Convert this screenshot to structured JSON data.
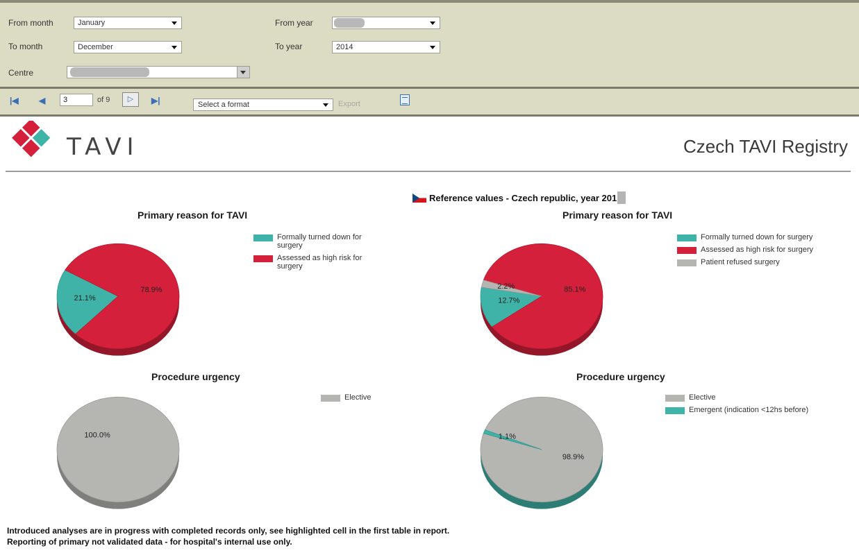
{
  "params": {
    "from_month_label": "From month",
    "from_month_value": "January",
    "to_month_label": "To month",
    "to_month_value": "December",
    "from_year_label": "From year",
    "to_year_label": "To year",
    "to_year_value": "2014",
    "centre_label": "Centre"
  },
  "toolbar": {
    "first_icon": "first-page-icon",
    "prev_icon": "previous-page-icon",
    "page_value": "3",
    "page_total": "of 9",
    "next_icon": "next-page-icon",
    "last_icon": "last-page-icon",
    "format_placeholder": "Select a format",
    "export_label": "Export",
    "refresh_icon": "document-icon"
  },
  "report": {
    "logo_text": "TAVI",
    "registry_title": "Czech TAVI Registry",
    "reference_title": "Reference values - Czech republic, year 201",
    "footer_line1": "Introduced analyses are in progress with completed records only, see highlighted cell in the first table in report.",
    "footer_line2": "Reporting of primary not validated data - for hospital's internal use only."
  },
  "colors": {
    "teal": "#3fb3a7",
    "red": "#d4203a",
    "grey": "#b5b5b2",
    "panel": "#dcdcc4"
  },
  "chart_data": [
    {
      "type": "pie",
      "title": "Primary reason for TAVI",
      "categories": [
        "Formally turned down for surgery",
        "Assessed as high risk for surgery"
      ],
      "values": [
        21.1,
        78.9
      ],
      "labels": [
        "21.1%",
        "78.9%"
      ],
      "colors": [
        "#3fb3a7",
        "#d4203a"
      ],
      "legend": "right"
    },
    {
      "type": "pie",
      "title": "Primary reason for TAVI",
      "categories": [
        "Formally turned down for surgery",
        "Assessed as high risk for surgery",
        "Patient refused surgery"
      ],
      "values": [
        12.7,
        85.1,
        2.2
      ],
      "labels": [
        "12.7%",
        "85.1%",
        "2.2%"
      ],
      "colors": [
        "#3fb3a7",
        "#d4203a",
        "#b5b5b2"
      ],
      "legend": "right"
    },
    {
      "type": "pie",
      "title": "Procedure urgency",
      "categories": [
        "Elective"
      ],
      "values": [
        100.0
      ],
      "labels": [
        "100.0%"
      ],
      "colors": [
        "#b5b5b2"
      ],
      "legend": "right"
    },
    {
      "type": "pie",
      "title": "Procedure urgency",
      "categories": [
        "Elective",
        "Emergent (indication <12hs before)"
      ],
      "values": [
        98.9,
        1.1
      ],
      "labels": [
        "98.9%",
        "1.1%"
      ],
      "colors": [
        "#b5b5b2",
        "#3fb3a7"
      ],
      "legend": "right"
    }
  ]
}
